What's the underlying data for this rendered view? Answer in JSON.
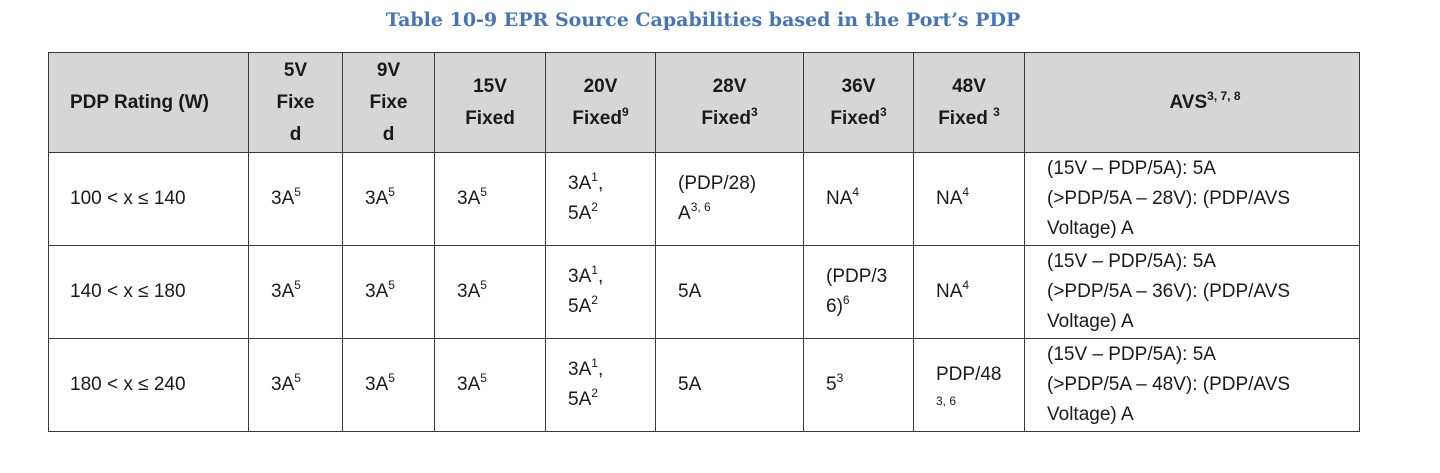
{
  "caption": "Table 10-9 EPR Source Capabilities based in the Port’s PDP",
  "header": {
    "pdp": "PDP Rating (W)",
    "v5": [
      "5V",
      "Fixe",
      "d"
    ],
    "v9": [
      "9V",
      "Fixe",
      "d"
    ],
    "v15": [
      "15V",
      "Fixed"
    ],
    "v20": {
      "line1": "20V",
      "line2": "Fixed",
      "sup": "9"
    },
    "v28": {
      "line1": "28V",
      "line2": "Fixed",
      "sup": "3"
    },
    "v36": {
      "line1": "36V",
      "line2": "Fixed",
      "sup": "3"
    },
    "v48": {
      "line1": "48V",
      "line2": "Fixed ",
      "sup": "3"
    },
    "avs": {
      "label": "AVS",
      "sup": "3, 7, 8"
    }
  },
  "rows": [
    {
      "pdp": "100 < x ≤ 140",
      "v5": {
        "val": "3A",
        "sup": "5"
      },
      "v9": {
        "val": "3A",
        "sup": "5"
      },
      "v15": {
        "val": "3A",
        "sup": "5"
      },
      "v20": {
        "l1": "3A",
        "s1": "1",
        "l1_suffix": ",",
        "l2": "5A",
        "s2": "2"
      },
      "v28": {
        "l1": "(PDP/28)",
        "l2": "A",
        "s2": "3, 6"
      },
      "v36": {
        "l1": "NA",
        "s1": "4"
      },
      "v48": {
        "l1": "NA",
        "s1": "4"
      },
      "avs": [
        "(15V – PDP/5A): 5A",
        "(>PDP/5A – 28V): (PDP/AVS",
        "Voltage) A"
      ]
    },
    {
      "pdp": "140 < x ≤ 180",
      "v5": {
        "val": "3A",
        "sup": "5"
      },
      "v9": {
        "val": "3A",
        "sup": "5"
      },
      "v15": {
        "val": "3A",
        "sup": "5"
      },
      "v20": {
        "l1": "3A",
        "s1": "1",
        "l1_suffix": ",",
        "l2": "5A",
        "s2": "2"
      },
      "v28": {
        "l1": "5A"
      },
      "v36": {
        "l1": "(PDP/3",
        "l2": "6)",
        "s2": "6"
      },
      "v48": {
        "l1": "NA",
        "s1": "4"
      },
      "avs": [
        "(15V – PDP/5A): 5A",
        "(>PDP/5A – 36V): (PDP/AVS",
        "Voltage) A"
      ]
    },
    {
      "pdp": "180 < x ≤ 240",
      "v5": {
        "val": "3A",
        "sup": "5"
      },
      "v9": {
        "val": "3A",
        "sup": "5"
      },
      "v15": {
        "val": "3A",
        "sup": "5"
      },
      "v20": {
        "l1": "3A",
        "s1": "1",
        "l1_suffix": ",",
        "l2": "5A",
        "s2": "2"
      },
      "v28": {
        "l1": "5A"
      },
      "v36": {
        "l1": "5",
        "s1": "3"
      },
      "v48": {
        "l1": "PDP/48",
        "l2": "",
        "s2": "3, 6"
      },
      "avs": [
        "(15V – PDP/5A): 5A",
        "(>PDP/5A – 48V): (PDP/AVS",
        "Voltage) A"
      ]
    }
  ]
}
